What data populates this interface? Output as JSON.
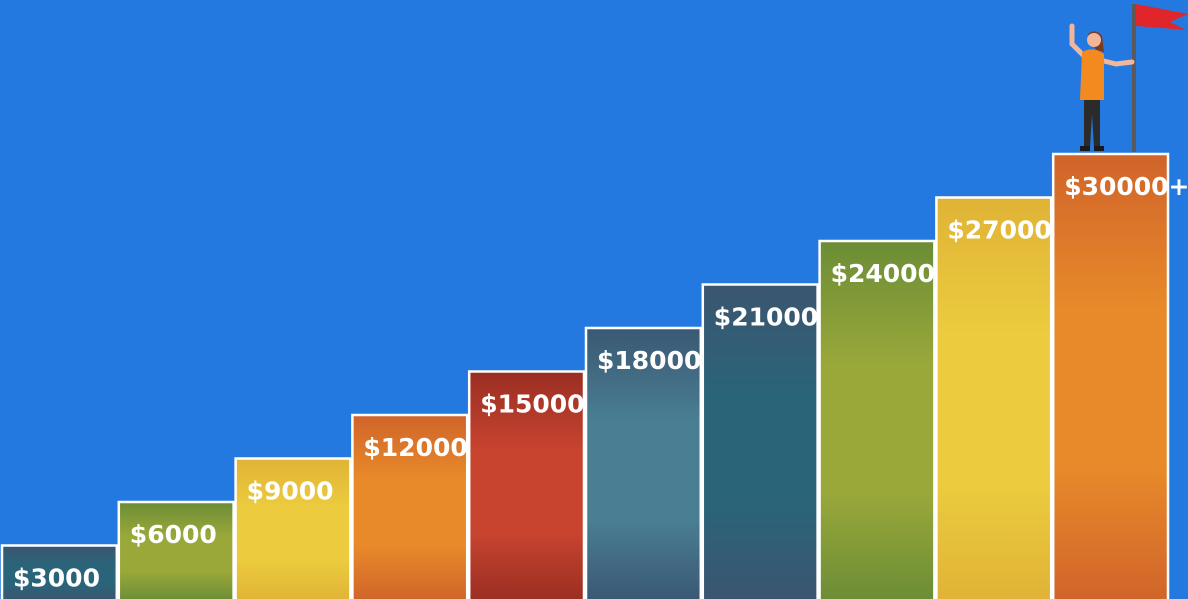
{
  "chart_data": {
    "type": "bar",
    "categories": [
      "$3000",
      "$6000",
      "$9000",
      "$12000",
      "$15000",
      "$18000",
      "$21000",
      "$24000",
      "$27000",
      "$30000+"
    ],
    "values": [
      3000,
      6000,
      9000,
      12000,
      15000,
      18000,
      21000,
      24000,
      27000,
      30000
    ],
    "title": "",
    "xlabel": "",
    "ylabel": "",
    "ylim": [
      0,
      30000
    ],
    "grid": false,
    "legend": "none",
    "palette": [
      [
        "#2a6479",
        "#3c5570"
      ],
      [
        "#9aa83a",
        "#6b8d36"
      ],
      [
        "#eccc3e",
        "#e0b336"
      ],
      [
        "#e88a2a",
        "#d0642a"
      ],
      [
        "#c8442f",
        "#9a2e22"
      ],
      [
        "#4a7f93",
        "#3a5873"
      ]
    ],
    "background": "#2479e0",
    "bar_border": "#ffffff"
  },
  "illustration": {
    "person_icon": "woman-cheering-icon",
    "flag_icon": "red-flag-icon",
    "flag_color": "#e0262b",
    "shirt_color": "#f28a1f"
  }
}
